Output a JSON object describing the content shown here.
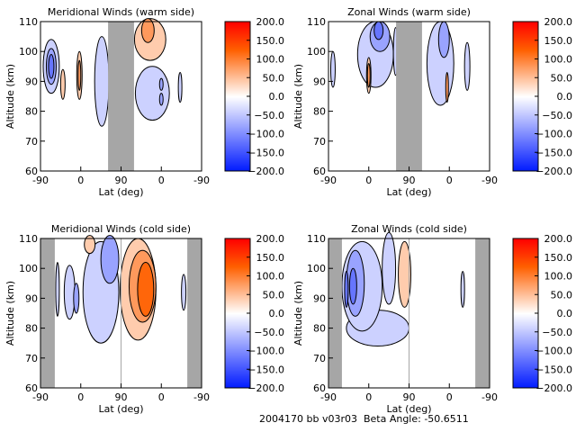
{
  "footer": "2004170 bb v03r03  Beta Angle: -50.6511",
  "chart_data": [
    {
      "type": "heatmap",
      "title": "Meridional Winds (warm side)",
      "xlabel": "Lat (deg)",
      "ylabel": "Altitude (km)",
      "xticks": [
        "-90",
        "0",
        "90",
        "0",
        "-90"
      ],
      "yticks": [
        "60",
        "70",
        "80",
        "90",
        "100",
        "110"
      ],
      "ylim": [
        60,
        110
      ],
      "colorbar": {
        "ticks": [
          "200.0",
          "150.0",
          "100.0",
          "50.0",
          "0.0",
          "-50.0",
          "-100.0",
          "-150.0",
          "-200.0"
        ],
        "range": [
          -200,
          200
        ]
      },
      "nodata_lat_path": [
        [
          151,
          209
        ]
      ],
      "contours": [
        [
          24,
          95,
          18,
          9,
          -25
        ],
        [
          24,
          95,
          11,
          6,
          -50
        ],
        [
          24,
          95,
          6,
          4,
          -75
        ],
        [
          50,
          89,
          5,
          5,
          25
        ],
        [
          87,
          92,
          6,
          8,
          25
        ],
        [
          87,
          92,
          3,
          5,
          50
        ],
        [
          137,
          90,
          16,
          15,
          -25
        ],
        [
          245,
          104,
          35,
          7,
          25
        ],
        [
          240,
          107,
          14,
          4,
          50
        ],
        [
          250,
          86,
          38,
          9,
          -25
        ],
        [
          270,
          89,
          4,
          2,
          -50
        ],
        [
          270,
          84,
          4,
          2,
          -50
        ],
        [
          312,
          88,
          4,
          5,
          -25
        ]
      ]
    },
    {
      "type": "heatmap",
      "title": "Zonal Winds (warm side)",
      "xlabel": "Lat (deg)",
      "ylabel": "Altitude (km)",
      "xticks": [
        "-90",
        "0",
        "90",
        "0",
        "-90"
      ],
      "yticks": [
        "60",
        "70",
        "80",
        "90",
        "100",
        "110"
      ],
      "ylim": [
        60,
        110
      ],
      "colorbar": {
        "ticks": [
          "200.0",
          "150.0",
          "100.0",
          "50.0",
          "0.0",
          "-50.0",
          "-100.0",
          "-150.0",
          "-200.0"
        ],
        "range": [
          -200,
          200
        ]
      },
      "nodata_lat_path": [
        [
          151,
          209
        ]
      ],
      "contours": [
        [
          105,
          99,
          40,
          11,
          -25
        ],
        [
          115,
          105,
          22,
          5,
          -50
        ],
        [
          112,
          107,
          10,
          3,
          -75
        ],
        [
          10,
          94,
          5,
          6,
          -25
        ],
        [
          90,
          92,
          5,
          6,
          25
        ],
        [
          90,
          92,
          3,
          4,
          50
        ],
        [
          150,
          100,
          5,
          8,
          -25
        ],
        [
          250,
          96,
          30,
          14,
          -25
        ],
        [
          258,
          104,
          12,
          6,
          -50
        ],
        [
          265,
          88,
          3,
          5,
          50
        ],
        [
          310,
          95,
          6,
          8,
          -25
        ]
      ]
    },
    {
      "type": "heatmap",
      "title": "Meridional Winds (cold side)",
      "xlabel": "Lat (deg)",
      "ylabel": "Altitude (km)",
      "xticks": [
        "-90",
        "0",
        "90",
        "0",
        "-90"
      ],
      "yticks": [
        "60",
        "70",
        "80",
        "90",
        "100",
        "110"
      ],
      "ylim": [
        60,
        110
      ],
      "colorbar": {
        "ticks": [
          "200.0",
          "150.0",
          "100.0",
          "50.0",
          "0.0",
          "-50.0",
          "-100.0",
          "-150.0",
          "-200.0"
        ],
        "range": [
          -200,
          200
        ]
      },
      "nodata_lat_path": [
        [
          0,
          32
        ],
        [
          328,
          360
        ]
      ],
      "contours": [
        [
          38,
          93,
          4,
          9,
          -25
        ],
        [
          65,
          92,
          12,
          9,
          -25
        ],
        [
          80,
          90,
          6,
          5,
          -50
        ],
        [
          135,
          92,
          40,
          17,
          -25
        ],
        [
          155,
          103,
          20,
          8,
          -50
        ],
        [
          110,
          108,
          12,
          3,
          25
        ],
        [
          218,
          93,
          40,
          17,
          25
        ],
        [
          228,
          94,
          30,
          12,
          50
        ],
        [
          235,
          93,
          18,
          9,
          75
        ],
        [
          320,
          92,
          5,
          6,
          -25
        ]
      ]
    },
    {
      "type": "heatmap",
      "title": "Zonal Winds (cold side)",
      "xlabel": "Lat (deg)",
      "ylabel": "Altitude (km)",
      "xticks": [
        "-90",
        "0",
        "90",
        "0",
        "-90"
      ],
      "yticks": [
        "60",
        "70",
        "80",
        "90",
        "100",
        "110"
      ],
      "ylim": [
        60,
        110
      ],
      "colorbar": {
        "ticks": [
          "200.0",
          "150.0",
          "100.0",
          "50.0",
          "0.0",
          "-50.0",
          "-100.0",
          "-150.0",
          "-200.0"
        ],
        "range": [
          -200,
          200
        ]
      },
      "nodata_lat_path": [
        [
          0,
          30
        ],
        [
          328,
          360
        ]
      ],
      "contours": [
        [
          110,
          80,
          70,
          6,
          -25
        ],
        [
          75,
          94,
          45,
          15,
          -25
        ],
        [
          60,
          95,
          20,
          11,
          -50
        ],
        [
          55,
          94,
          8,
          6,
          -75
        ],
        [
          40,
          93,
          4,
          6,
          -75
        ],
        [
          135,
          100,
          15,
          12,
          -25
        ],
        [
          170,
          98,
          14,
          11,
          25
        ],
        [
          300,
          93,
          4,
          6,
          -25
        ]
      ]
    }
  ]
}
